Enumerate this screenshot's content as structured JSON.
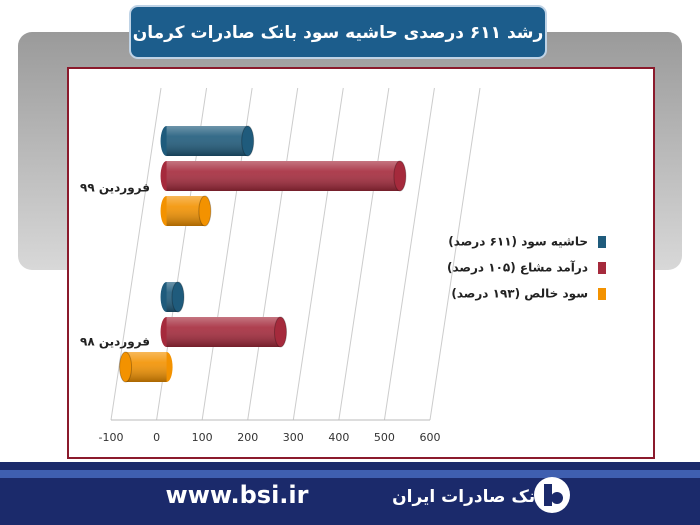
{
  "chart_data": {
    "type": "bar",
    "orientation": "horizontal",
    "title": "رشد ۶۱۱ درصدی حاشیه سود بانک صادرات کرمان",
    "categories": [
      "فروردین ۹۹",
      "فروردین ۹۸"
    ],
    "series": [
      {
        "name": "حاشیه سود (۶۱۱ درصد)",
        "color": "#1f5b7c",
        "values": [
          178,
          25
        ]
      },
      {
        "name": "درآمد مشاع (۱۰۵ درصد)",
        "color": "#a52a3c",
        "values": [
          512,
          250
        ]
      },
      {
        "name": "سود خالص (۱۹۳ درصد)",
        "color": "#f39200",
        "values": [
          84,
          -90
        ]
      }
    ],
    "xlim": [
      -100,
      600
    ],
    "xticks": [
      -100,
      0,
      100,
      200,
      300,
      400,
      500,
      600
    ],
    "grid": true,
    "legend": "right"
  },
  "footer": {
    "website": "www.bsi.ir",
    "bank": "بانک صادرات ایران"
  }
}
